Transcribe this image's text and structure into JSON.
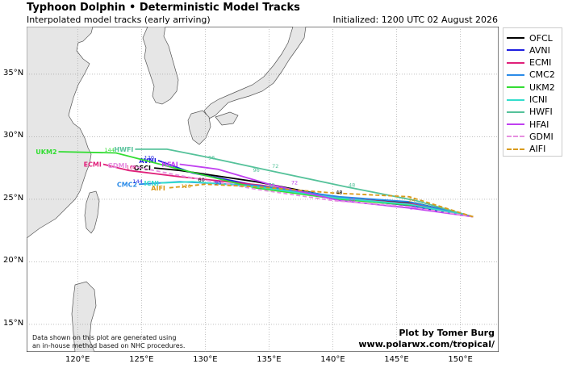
{
  "header": {
    "title": "Typhoon Dolphin • Deterministic Model Tracks",
    "subtitle": "Interpolated model tracks (early arriving)",
    "initialized": "Initialized: 1200 UTC 02 August 2026"
  },
  "axes": {
    "lat_labels": [
      "35°N",
      "30°N",
      "25°N",
      "20°N",
      "15°N"
    ],
    "lon_labels": [
      "120°E",
      "125°E",
      "130°E",
      "135°E",
      "140°E",
      "145°E",
      "150°E"
    ],
    "lat_values": [
      35,
      30,
      25,
      20,
      15
    ],
    "lon_values": [
      120,
      125,
      130,
      135,
      140,
      145,
      150
    ],
    "lon_range": [
      116,
      153
    ],
    "lat_range": [
      12.8,
      38.8
    ]
  },
  "legend": {
    "items": [
      {
        "label": "OFCL",
        "color": "#000000",
        "style": "solid"
      },
      {
        "label": "AVNI",
        "color": "#1f1fe0",
        "style": "solid"
      },
      {
        "label": "ECMI",
        "color": "#e0207a",
        "style": "solid"
      },
      {
        "label": "CMC2",
        "color": "#2b8be8",
        "style": "solid"
      },
      {
        "label": "UKM2",
        "color": "#33dd33",
        "style": "solid"
      },
      {
        "label": "ICNI",
        "color": "#33ddcc",
        "style": "solid"
      },
      {
        "label": "HWFI",
        "color": "#55c29a",
        "style": "solid"
      },
      {
        "label": "HFAI",
        "color": "#c040f0",
        "style": "solid"
      },
      {
        "label": "GDMI",
        "color": "#e68fe0",
        "style": "dashed"
      },
      {
        "label": "AIFI",
        "color": "#d99a1a",
        "style": "dashed"
      }
    ]
  },
  "tracks": [
    {
      "name": "OFCL",
      "color": "#000000",
      "dashed": false,
      "label": "OFCL",
      "points": [
        [
          151.0,
          23.6
        ],
        [
          146.5,
          24.7
        ],
        [
          140.0,
          25.2
        ],
        [
          134.0,
          26.4
        ],
        [
          128.0,
          27.3
        ],
        [
          126.0,
          27.5
        ]
      ]
    },
    {
      "name": "AVNI",
      "color": "#1f1fe0",
      "dashed": false,
      "label": "AVNI",
      "points": [
        [
          151.0,
          23.6
        ],
        [
          146.0,
          24.5
        ],
        [
          140.2,
          25.1
        ],
        [
          134.0,
          26.1
        ],
        [
          129.0,
          27.1
        ],
        [
          126.3,
          28.1
        ]
      ]
    },
    {
      "name": "ECMI",
      "color": "#e0207a",
      "dashed": false,
      "label": "ECMI",
      "points": [
        [
          151.0,
          23.6
        ],
        [
          146.5,
          24.6
        ],
        [
          140.5,
          25.1
        ],
        [
          134.5,
          26.1
        ],
        [
          128.0,
          26.8
        ],
        [
          124.0,
          27.3
        ],
        [
          122.0,
          27.8
        ]
      ]
    },
    {
      "name": "CMC2",
      "color": "#2b8be8",
      "dashed": false,
      "label": "CMC2",
      "points": [
        [
          151.0,
          23.6
        ],
        [
          146.0,
          24.8
        ],
        [
          140.5,
          25.2
        ],
        [
          134.0,
          26.1
        ],
        [
          128.0,
          26.4
        ],
        [
          124.8,
          26.2
        ]
      ]
    },
    {
      "name": "UKM2",
      "color": "#33dd33",
      "dashed": false,
      "label": "UKM2",
      "points": [
        [
          151.0,
          23.6
        ],
        [
          146.5,
          24.5
        ],
        [
          140.5,
          25.0
        ],
        [
          134.0,
          25.9
        ],
        [
          128.0,
          27.4
        ],
        [
          123.0,
          28.7
        ],
        [
          118.5,
          28.8
        ]
      ]
    },
    {
      "name": "ICNI",
      "color": "#33ddcc",
      "dashed": false,
      "label": "ICNI",
      "points": [
        [
          151.0,
          23.6
        ],
        [
          146.0,
          24.6
        ],
        [
          140.3,
          25.1
        ],
        [
          134.0,
          26.0
        ],
        [
          129.0,
          26.4
        ],
        [
          126.5,
          26.3
        ]
      ]
    },
    {
      "name": "HWFI",
      "color": "#55c29a",
      "dashed": false,
      "label": "HWFI",
      "points": [
        [
          151.0,
          23.6
        ],
        [
          146.5,
          24.9
        ],
        [
          141.0,
          26.0
        ],
        [
          135.0,
          27.3
        ],
        [
          130.0,
          28.4
        ],
        [
          127.0,
          29.0
        ],
        [
          124.5,
          29.0
        ]
      ]
    },
    {
      "name": "HFAI",
      "color": "#c040f0",
      "dashed": false,
      "label": "HFAI",
      "points": [
        [
          151.0,
          23.6
        ],
        [
          146.0,
          24.3
        ],
        [
          140.5,
          24.9
        ],
        [
          135.0,
          26.2
        ],
        [
          131.0,
          27.4
        ],
        [
          128.0,
          27.8
        ]
      ]
    },
    {
      "name": "GDMI",
      "color": "#e68fe0",
      "dashed": true,
      "label": "GDMI",
      "points": [
        [
          151.0,
          23.6
        ],
        [
          146.0,
          24.4
        ],
        [
          140.0,
          24.9
        ],
        [
          134.0,
          25.8
        ],
        [
          128.0,
          26.9
        ],
        [
          124.0,
          27.7
        ]
      ]
    },
    {
      "name": "AIFI",
      "color": "#d99a1a",
      "dashed": true,
      "label": "AIFI",
      "points": [
        [
          151.0,
          23.6
        ],
        [
          146.0,
          25.2
        ],
        [
          140.0,
          25.5
        ],
        [
          134.0,
          26.0
        ],
        [
          130.0,
          26.2
        ],
        [
          127.0,
          25.9
        ]
      ]
    }
  ],
  "hour_labels": [
    {
      "text": "144",
      "lon": 122.5,
      "lat": 28.8,
      "color": "#33dd33"
    },
    {
      "text": "120",
      "lon": 125.6,
      "lat": 28.2,
      "color": "#1f1fe0"
    },
    {
      "text": "168",
      "lon": 124.2,
      "lat": 27.4,
      "color": "#e0207a"
    },
    {
      "text": "144",
      "lon": 124.7,
      "lat": 26.3,
      "color": "#1f1fe0"
    },
    {
      "text": "120",
      "lon": 128.5,
      "lat": 25.9,
      "color": "#d99a1a"
    },
    {
      "text": "96",
      "lon": 130.5,
      "lat": 28.2,
      "color": "#55c29a"
    },
    {
      "text": "96",
      "lon": 134.0,
      "lat": 27.2,
      "color": "#55c29a"
    },
    {
      "text": "72",
      "lon": 135.5,
      "lat": 27.5,
      "color": "#55c29a"
    },
    {
      "text": "72",
      "lon": 135.2,
      "lat": 26.0,
      "color": "#55c29a"
    },
    {
      "text": "72",
      "lon": 137.0,
      "lat": 26.2,
      "color": "#c040f0"
    },
    {
      "text": "48",
      "lon": 141.5,
      "lat": 26.0,
      "color": "#55c29a"
    },
    {
      "text": "48",
      "lon": 140.5,
      "lat": 25.4,
      "color": "#000000"
    },
    {
      "text": "48",
      "lon": 141.5,
      "lat": 24.8,
      "color": "#c040f0"
    },
    {
      "text": "24",
      "lon": 146.2,
      "lat": 24.8,
      "color": "#d99a1a"
    },
    {
      "text": "24",
      "lon": 146.3,
      "lat": 24.2,
      "color": "#c040f0"
    },
    {
      "text": "60",
      "lon": 129.7,
      "lat": 26.4,
      "color": "#000000"
    },
    {
      "text": "96",
      "lon": 131.0,
      "lat": 26.2,
      "color": "#1f1fe0"
    }
  ],
  "credit": {
    "line1": "Plot by Tomer Burg",
    "line2": "www.polarwx.com/tropical/"
  },
  "note": {
    "line1": "Data shown on this plot are generated using",
    "line2": "an in-house method based on NHC procedures."
  }
}
